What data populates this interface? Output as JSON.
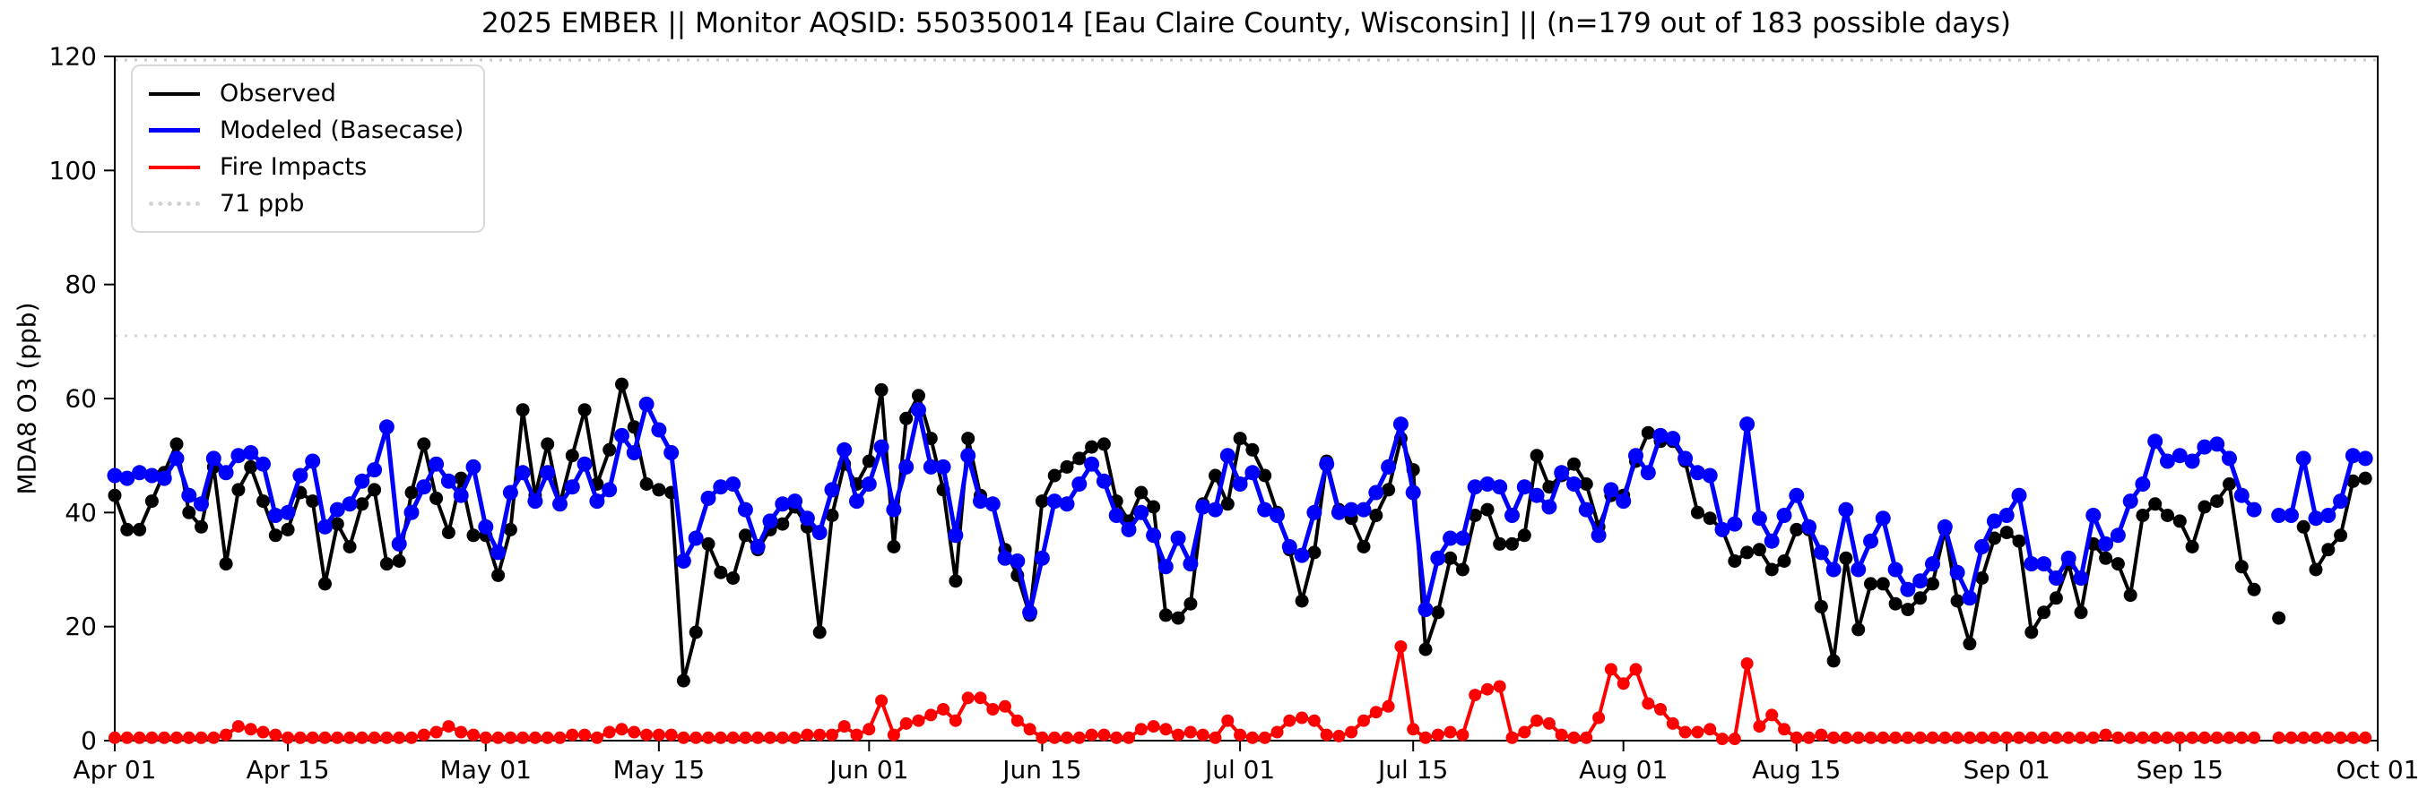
{
  "title": "2025 EMBER || Monitor AQSID: 550350014 [Eau Claire County, Wisconsin] || (n=179 out of 183 possible days)",
  "axes": {
    "ylabel": "MDA8 O3 (ppb)",
    "ylim": [
      0,
      120
    ],
    "yticks": [
      0,
      20,
      40,
      60,
      80,
      100,
      120
    ],
    "xtick_labels": [
      "Apr 01",
      "Apr 15",
      "May 01",
      "May 15",
      "Jun 01",
      "Jun 15",
      "Jul 01",
      "Jul 15",
      "Aug 01",
      "Aug 15",
      "Sep 01",
      "Sep 15",
      "Oct 01"
    ],
    "xtick_days": [
      0,
      14,
      30,
      44,
      61,
      75,
      91,
      105,
      122,
      136,
      153,
      167,
      183
    ],
    "total_days": 183,
    "grid": "off",
    "legend_position": "upper left"
  },
  "threshold": {
    "value": 71,
    "label": "71 ppb",
    "color": "#d3d3d3"
  },
  "colors": {
    "observed": "#000000",
    "modeled": "#0000ff",
    "fire": "#ff0000",
    "threshold": "#d3d3d3",
    "background": "#ffffff"
  },
  "legend": {
    "items": [
      {
        "label": "Observed",
        "color": "#000000",
        "style": "solid"
      },
      {
        "label": "Modeled (Basecase)",
        "color": "#0000ff",
        "style": "solid"
      },
      {
        "label": "Fire Impacts",
        "color": "#ff0000",
        "style": "solid"
      },
      {
        "label": "71 ppb",
        "color": "#d3d3d3",
        "style": "dotted"
      }
    ]
  },
  "chart_data": {
    "type": "line",
    "x_unit": "daily values, day index 0 = Apr 01 2025 through Sep 30 2025",
    "x_range": [
      "Apr 01",
      "Oct 01"
    ],
    "n_shown": 179,
    "n_possible": 183,
    "series": [
      {
        "name": "Observed",
        "color": "#000000",
        "values": [
          43,
          37,
          37,
          42,
          47,
          52,
          40,
          37.5,
          48,
          31,
          44,
          48,
          42,
          36,
          37,
          43.5,
          42,
          27.5,
          38,
          34,
          41.5,
          44,
          31,
          31.5,
          43.5,
          52,
          42.5,
          36.5,
          46,
          36,
          36,
          29,
          37,
          58,
          43,
          52,
          41.5,
          50,
          58,
          45,
          51,
          62.5,
          55,
          45,
          44,
          43.5,
          10.5,
          19,
          34.5,
          29.5,
          28.5,
          36,
          33.5,
          37,
          38,
          41,
          37.5,
          19,
          39.5,
          48.5,
          45,
          49,
          61.5,
          34,
          56.5,
          60.5,
          53,
          44,
          28,
          53,
          43,
          41.5,
          33.5,
          29,
          22,
          42,
          46.5,
          48,
          49.5,
          51.5,
          52,
          42,
          38.5,
          43.5,
          41,
          22,
          21.5,
          24,
          41.5,
          46.5,
          41.5,
          53,
          51,
          46.5,
          40,
          33.5,
          24.5,
          33,
          49,
          40.5,
          39,
          34,
          39.5,
          44,
          53,
          47.5,
          16,
          22.5,
          32,
          30,
          39.5,
          40.5,
          34.5,
          34.5,
          36,
          50,
          44.5,
          46.5,
          48.5,
          45,
          37.5,
          43,
          43,
          49,
          54,
          52.5,
          52.5,
          49,
          40,
          39,
          37,
          31.5,
          33,
          33.5,
          30,
          31.5,
          37,
          37,
          23.5,
          14,
          32,
          19.5,
          27.5,
          27.5,
          24,
          23,
          25,
          27.5,
          37,
          24.5,
          17,
          28.5,
          35.5,
          36.5,
          35,
          19,
          22.5,
          25,
          31,
          22.5,
          34.5,
          32,
          31,
          25.5,
          39.5,
          41.5,
          39.5,
          38.5,
          34,
          41,
          42,
          45,
          30.5,
          26.5,
          null,
          21.5,
          null,
          37.5,
          30,
          33.5,
          36,
          45.5,
          46
        ]
      },
      {
        "name": "Modeled (Basecase)",
        "color": "#0000ff",
        "values": [
          46.5,
          46,
          47,
          46.5,
          46,
          49.5,
          43,
          41.5,
          49.5,
          47,
          50,
          50.5,
          48.5,
          39.5,
          40,
          46.5,
          49,
          37.5,
          40.5,
          41.5,
          45.5,
          47.5,
          55,
          34.5,
          40,
          44.5,
          48.5,
          45.5,
          43,
          48,
          37.5,
          33,
          43.5,
          47,
          42,
          47,
          41.5,
          44.5,
          48.5,
          42,
          44,
          53.5,
          50.5,
          59,
          54.5,
          50.5,
          31.5,
          35.5,
          42.5,
          44.5,
          45,
          40.5,
          34,
          38.5,
          41.5,
          42,
          39,
          36.5,
          44,
          51,
          42,
          45,
          51.5,
          40.5,
          48,
          58,
          48,
          48,
          36,
          50,
          42,
          41.5,
          32,
          31.5,
          22.5,
          32,
          42,
          41.5,
          45,
          48.5,
          45.5,
          39.5,
          37,
          40,
          36,
          30.5,
          35.5,
          31,
          41,
          40.5,
          50,
          45,
          47,
          40.5,
          39.5,
          34,
          32.5,
          40,
          48.5,
          40,
          40.5,
          40.5,
          43.5,
          48,
          55.5,
          43.5,
          23,
          32,
          35.5,
          35.5,
          44.5,
          45,
          44.5,
          39.5,
          44.5,
          43,
          41,
          47,
          45,
          40.5,
          36,
          44,
          42,
          50,
          47,
          53.5,
          53,
          49.5,
          47,
          46.5,
          37,
          38,
          55.5,
          39,
          35,
          39.5,
          43,
          37.5,
          33,
          30,
          40.5,
          30,
          35,
          39,
          30,
          26.5,
          28,
          31,
          37.5,
          29.5,
          25,
          34,
          38.5,
          39.5,
          43,
          31,
          31,
          28.5,
          32,
          28.5,
          39.5,
          34.5,
          36,
          42,
          45,
          52.5,
          49,
          50,
          49,
          51.5,
          52,
          49.5,
          43,
          40.5,
          null,
          39.5,
          39.5,
          49.5,
          39,
          39.5,
          42,
          50,
          49.5
        ]
      },
      {
        "name": "Fire Impacts",
        "color": "#ff0000",
        "values": [
          0.5,
          0.5,
          0.5,
          0.5,
          0.5,
          0.5,
          0.5,
          0.5,
          0.5,
          1,
          2.5,
          2,
          1.5,
          1,
          0.5,
          0.5,
          0.5,
          0.5,
          0.5,
          0.5,
          0.5,
          0.5,
          0.5,
          0.5,
          0.5,
          1,
          1.5,
          2.5,
          1.5,
          1,
          0.5,
          0.5,
          0.5,
          0.5,
          0.5,
          0.5,
          0.5,
          1,
          1,
          0.5,
          1.5,
          2,
          1.5,
          1,
          1,
          1,
          0.5,
          0.5,
          0.5,
          0.5,
          0.5,
          0.5,
          0.5,
          0.5,
          0.5,
          0.5,
          1,
          1,
          1,
          2.5,
          1,
          2,
          7,
          1,
          3,
          3.5,
          4.5,
          5.5,
          3.5,
          7.5,
          7.5,
          5.5,
          6,
          3.5,
          2,
          0.5,
          0.5,
          0.5,
          0.5,
          1,
          1,
          0.5,
          0.5,
          2,
          2.5,
          2,
          1,
          1.5,
          1,
          0.5,
          3.5,
          1,
          0.5,
          0.5,
          1.5,
          3.5,
          4,
          3.5,
          1,
          0.8,
          1.5,
          3.5,
          5,
          6,
          16.5,
          2,
          0.5,
          1,
          1.5,
          1,
          8,
          9,
          9.5,
          0.5,
          1.5,
          3.5,
          3,
          1,
          0.5,
          0.5,
          4,
          12.5,
          10,
          12.5,
          6.5,
          5.5,
          3,
          1.5,
          1.5,
          2,
          0.3,
          0.3,
          13.5,
          2.5,
          4.5,
          2,
          0.5,
          0.5,
          1,
          0.5,
          0.5,
          0.5,
          0.5,
          0.5,
          0.5,
          0.5,
          0.5,
          0.5,
          0.5,
          0.5,
          0.5,
          0.5,
          0.5,
          0.5,
          0.5,
          0.5,
          0.5,
          0.5,
          0.5,
          0.5,
          0.5,
          1,
          0.5,
          0.5,
          0.5,
          0.5,
          0.5,
          0.5,
          0.5,
          0.5,
          0.5,
          0.5,
          0.5,
          0.5,
          null,
          0.5,
          0.5,
          0.5,
          0.5,
          0.5,
          0.5,
          0.5,
          0.5
        ]
      }
    ]
  }
}
